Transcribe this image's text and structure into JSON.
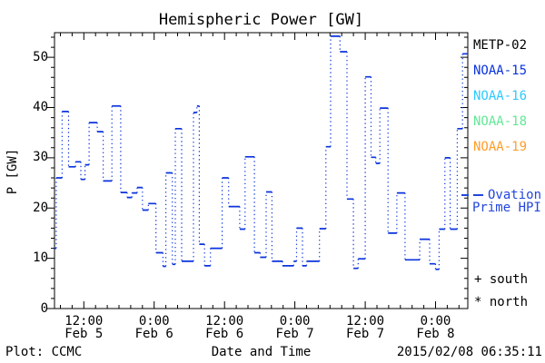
{
  "title": "Hemispheric Power [GW]",
  "axes": {
    "ylabel": "P [GW]",
    "xlabel": "Date and Time",
    "y_major_ticks": [
      0,
      10,
      20,
      30,
      40,
      50
    ],
    "y_minor_step": 2,
    "x_major_ticks": [
      {
        "hours": 12,
        "time": "12:00",
        "date": "Feb 5"
      },
      {
        "hours": 24,
        "time": "0:00",
        "date": "Feb 6"
      },
      {
        "hours": 36,
        "time": "12:00",
        "date": "Feb 6"
      },
      {
        "hours": 48,
        "time": "0:00",
        "date": "Feb 7"
      },
      {
        "hours": 60,
        "time": "12:00",
        "date": "Feb 7"
      },
      {
        "hours": 72,
        "time": "0:00",
        "date": "Feb 8"
      }
    ],
    "x_minor_step_hours": 2
  },
  "footer": {
    "plot_credit": "Plot: CCMC",
    "timestamp": "2015/02/08 06:35:11"
  },
  "legend": {
    "satellites": [
      {
        "label": "METP-02",
        "color": "#000000"
      },
      {
        "label": "NOAA-15",
        "color": "#0a33dd"
      },
      {
        "label": "NOAA-16",
        "color": "#2fc8ff"
      },
      {
        "label": "NOAA-18",
        "color": "#63e896"
      },
      {
        "label": "NOAA-19",
        "color": "#ff9e2a"
      }
    ],
    "line_sample_color": "#2246dd",
    "line_label_1": "Ovation",
    "line_label_2": "Prime HPI",
    "south_marker": "+",
    "south_label": "south",
    "north_marker": "*",
    "north_label": "north"
  },
  "chart_data": {
    "type": "line",
    "subtype": "step",
    "title": "Hemispheric Power [GW]",
    "xlabel": "Date and Time",
    "ylabel": "P [GW]",
    "x_unit": "hours since 2015-02-05 00:00 UT",
    "xlim": [
      7.0,
      77.5
    ],
    "ylim": [
      0,
      54.9
    ],
    "grid": false,
    "legend_position": "right-outside",
    "series": [
      {
        "name": "Ovation Prime HPI",
        "color": "#0a33dd",
        "style": "horizontal solid steps joined by dotted verticals",
        "segments_t0_t1_gw": [
          [
            7.0,
            7.3,
            12.0
          ],
          [
            7.3,
            8.3,
            26.0
          ],
          [
            8.3,
            9.4,
            39.2
          ],
          [
            9.4,
            10.6,
            28.2
          ],
          [
            10.6,
            11.5,
            29.2
          ],
          [
            11.5,
            12.2,
            25.7
          ],
          [
            12.2,
            12.9,
            28.6
          ],
          [
            12.9,
            14.3,
            37.0
          ],
          [
            14.3,
            15.3,
            35.2
          ],
          [
            15.3,
            16.8,
            25.4
          ],
          [
            16.8,
            18.3,
            40.3
          ],
          [
            18.3,
            19.4,
            23.1
          ],
          [
            19.4,
            20.2,
            22.1
          ],
          [
            20.2,
            21.1,
            23.0
          ],
          [
            21.1,
            22.0,
            24.1
          ],
          [
            22.0,
            23.0,
            19.6
          ],
          [
            23.0,
            24.3,
            20.9
          ],
          [
            24.3,
            25.5,
            11.1
          ],
          [
            25.5,
            26.0,
            8.4
          ],
          [
            26.0,
            27.1,
            27.0
          ],
          [
            27.1,
            27.6,
            8.8
          ],
          [
            27.6,
            28.7,
            35.8
          ],
          [
            28.7,
            30.7,
            9.4
          ],
          [
            30.7,
            31.3,
            39.0
          ],
          [
            31.3,
            31.7,
            40.3
          ],
          [
            31.7,
            32.6,
            12.8
          ],
          [
            32.6,
            33.6,
            8.5
          ],
          [
            33.6,
            35.6,
            12.0
          ],
          [
            35.6,
            36.7,
            26.0
          ],
          [
            36.7,
            38.6,
            20.3
          ],
          [
            38.6,
            39.5,
            15.8
          ],
          [
            39.5,
            41.1,
            30.2
          ],
          [
            41.1,
            42.1,
            11.1
          ],
          [
            42.1,
            43.1,
            10.2
          ],
          [
            43.1,
            44.1,
            23.2
          ],
          [
            44.1,
            45.9,
            9.4
          ],
          [
            45.9,
            47.8,
            8.5
          ],
          [
            47.8,
            48.3,
            9.4
          ],
          [
            48.3,
            49.3,
            16.0
          ],
          [
            49.3,
            50.0,
            8.5
          ],
          [
            50.0,
            52.2,
            9.4
          ],
          [
            52.2,
            53.3,
            15.9
          ],
          [
            53.3,
            54.1,
            32.2
          ],
          [
            54.1,
            55.7,
            54.2
          ],
          [
            55.7,
            56.9,
            51.1
          ],
          [
            56.9,
            58.0,
            21.8
          ],
          [
            58.0,
            58.8,
            8.0
          ],
          [
            58.8,
            60.0,
            9.9
          ],
          [
            60.0,
            61.0,
            46.1
          ],
          [
            61.0,
            61.8,
            30.1
          ],
          [
            61.8,
            62.5,
            28.9
          ],
          [
            62.5,
            63.9,
            39.9
          ],
          [
            63.9,
            65.4,
            15.0
          ],
          [
            65.4,
            66.8,
            23.0
          ],
          [
            66.8,
            69.3,
            9.7
          ],
          [
            69.3,
            71.0,
            13.8
          ],
          [
            71.0,
            72.0,
            8.9
          ],
          [
            72.0,
            72.6,
            7.8
          ],
          [
            72.6,
            73.6,
            15.8
          ],
          [
            73.6,
            74.5,
            30.0
          ],
          [
            74.5,
            75.7,
            15.8
          ],
          [
            75.7,
            76.6,
            35.8
          ],
          [
            76.6,
            77.5,
            50.7
          ]
        ]
      }
    ]
  }
}
